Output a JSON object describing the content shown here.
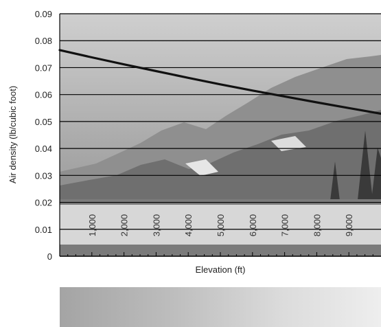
{
  "chart_data": {
    "type": "line",
    "title": "",
    "xlabel": "Elevation (ft)",
    "ylabel": "Air density (lb/cubic foot)",
    "xlim": [
      0,
      10000
    ],
    "ylim": [
      0,
      0.09
    ],
    "yticks": [
      "0",
      "0.01",
      "0.02",
      "0.03",
      "0.04",
      "0.05",
      "0.06",
      "0.07",
      "0.08",
      "0.09"
    ],
    "xticks": [
      "1,000",
      "2,000",
      "3,000",
      "4,000",
      "5,000",
      "6,000",
      "7,000",
      "8,000",
      "9,000"
    ],
    "grid": true,
    "legend": "none",
    "series": [
      {
        "x": [
          0,
          1000,
          2000,
          3000,
          4000,
          5000,
          6000,
          7000,
          8000,
          9000,
          10000
        ],
        "y": [
          0.0765,
          0.0738,
          0.0712,
          0.0687,
          0.0662,
          0.0638,
          0.0615,
          0.0593,
          0.0571,
          0.055,
          0.0529
        ],
        "color": "#111111"
      }
    ],
    "background": "grayscale mountain landscape photograph"
  }
}
